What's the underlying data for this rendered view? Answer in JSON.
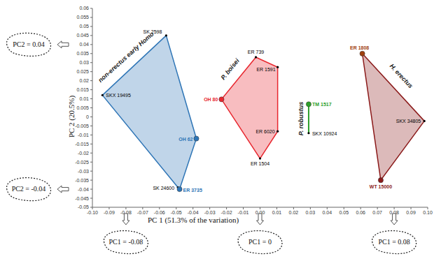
{
  "chart_data": {
    "type": "scatter",
    "x_label": "PC 1 (51.3% of the variation)",
    "y_label": "PC 2 (20.5%)",
    "xlim": [
      -0.1,
      0.1
    ],
    "xticks": [
      {
        "value": -0.1,
        "label": "-0.10"
      },
      -0.09,
      -0.08,
      -0.07,
      -0.06,
      -0.05,
      -0.04,
      -0.03,
      -0.02,
      -0.01,
      {
        "value": 0,
        "label": "0.00"
      },
      0.01,
      0.02,
      0.03,
      0.04,
      0.05,
      0.06,
      0.07,
      0.08,
      0.09,
      {
        "value": 0.1,
        "label": "0.10"
      }
    ],
    "ylim": [
      -0.05,
      0.06
    ],
    "yticks": [
      -0.05,
      -0.045,
      -0.04,
      -0.035,
      -0.03,
      -0.025,
      -0.02,
      -0.015,
      -0.01,
      -0.005,
      0,
      0.005,
      0.01,
      0.015,
      0.02,
      0.025,
      0.03,
      0.035,
      0.04,
      0.045,
      0.05,
      0.055,
      0.06
    ],
    "grid": false,
    "series": [
      {
        "name": "non-erectus early Homo",
        "color": "#2e75b6",
        "points": [
          {
            "label": "SK 2598",
            "x": -0.056,
            "y": 0.045,
            "color": "#000000"
          },
          {
            "label": "SKX 19495",
            "x": -0.094,
            "y": 0.012,
            "color": "#000000"
          },
          {
            "label": "SK 24600",
            "x": -0.049,
            "y": -0.039,
            "color": "#000000"
          },
          {
            "label": "ER 3735",
            "x": -0.048,
            "y": -0.04,
            "color": "#2e75b6"
          },
          {
            "label": "OH 62",
            "x": -0.038,
            "y": -0.012,
            "color": "#2e75b6"
          }
        ]
      },
      {
        "name": "P. boisei",
        "color": "#e8262e",
        "points": [
          {
            "label": "ER 739",
            "x": -0.0025,
            "y": 0.033,
            "color": "#000000"
          },
          {
            "label": "ER 1591",
            "x": 0.0105,
            "y": 0.0275,
            "color": "#000000"
          },
          {
            "label": "ER 6020",
            "x": 0.0105,
            "y": -0.008,
            "color": "#000000"
          },
          {
            "label": "ER 1504",
            "x": 0.0,
            "y": -0.023,
            "color": "#000000"
          },
          {
            "label": "OH 80",
            "x": -0.023,
            "y": 0.0097,
            "color": "#e8262e"
          }
        ]
      },
      {
        "name": "P. robustus",
        "color": "#2ca02c",
        "points": [
          {
            "label": "TM 1517",
            "x": 0.029,
            "y": 0.007,
            "color": "#2ca02c"
          },
          {
            "label": "SKX 10924",
            "x": 0.029,
            "y": -0.009,
            "color": "#000000"
          }
        ]
      },
      {
        "name": "H. erectus",
        "color": "#8b1a1a",
        "points": [
          {
            "label": "ER 1808",
            "x": 0.061,
            "y": 0.035,
            "color": "#a0400f"
          },
          {
            "label": "SKX 34805",
            "x": 0.098,
            "y": -0.0023,
            "color": "#000000"
          },
          {
            "label": "WT 15000",
            "x": 0.072,
            "y": -0.035,
            "color": "#8b1a1a"
          }
        ]
      }
    ],
    "annotations": [
      {
        "text": "PC2 = 0.04",
        "axis": "y",
        "value": 0.04
      },
      {
        "text": "PC2 = -0.04",
        "axis": "y",
        "value": -0.04
      },
      {
        "text": "PC1 = -0.08",
        "axis": "x",
        "value": -0.08
      },
      {
        "text": "PC1 = 0",
        "axis": "x",
        "value": 0
      },
      {
        "text": "PC1 = 0.08",
        "axis": "x",
        "value": 0.08
      }
    ]
  }
}
